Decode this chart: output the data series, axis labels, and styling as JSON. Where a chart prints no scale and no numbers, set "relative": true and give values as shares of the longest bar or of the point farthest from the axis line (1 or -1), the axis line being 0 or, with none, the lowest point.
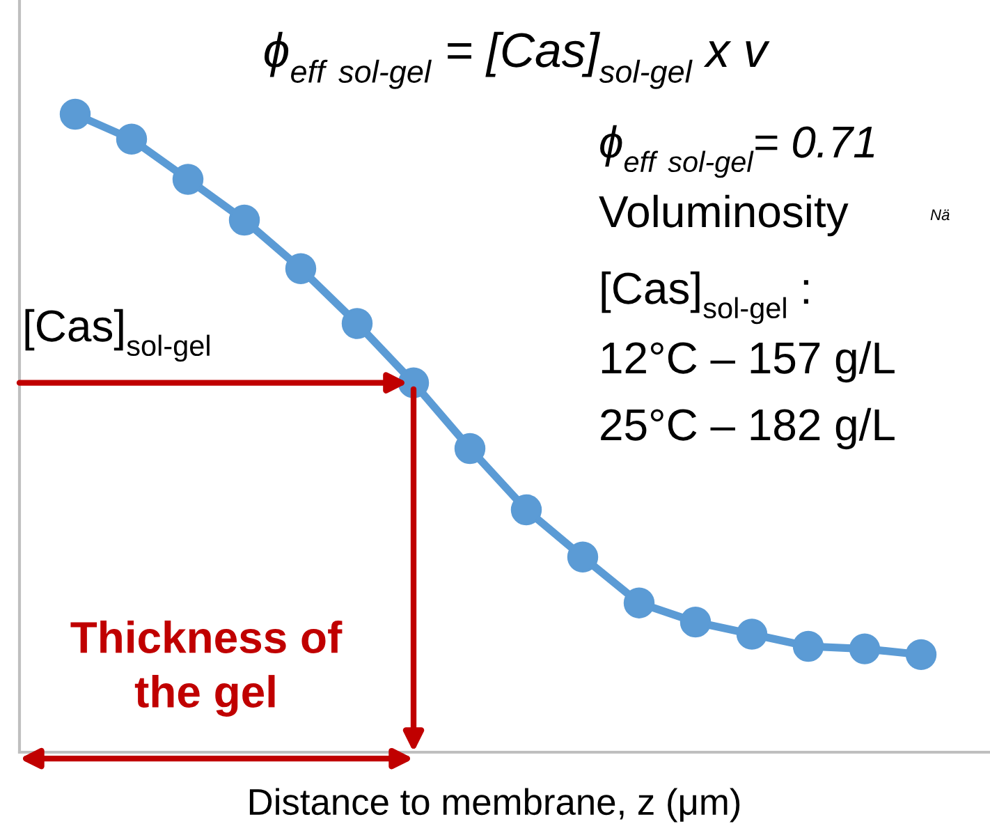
{
  "chart_data": {
    "type": "line",
    "relative": true,
    "marker": "circle",
    "line_style": "solid",
    "grid": false,
    "title": "ϕ$_{eff}$ $_{sol-gel}$ = [Cas]$_{sol-gel}$ x v",
    "xlabel": "Distance to membrane, z (μm)",
    "categories": [
      null,
      null,
      null,
      null,
      null,
      null,
      null,
      null,
      null,
      null,
      null,
      null,
      null,
      null,
      null,
      null
    ],
    "series": [
      {
        "color": "#5b9bd5",
        "values": [
          1,
          0.961,
          0.898,
          0.834,
          0.758,
          0.672,
          0.579,
          0.476,
          0.38,
          0.306,
          0.234,
          0.204,
          0.185,
          0.166,
          0.162,
          0.153
        ]
      }
    ],
    "annotations": [
      "ϕ$_{eff}$ $_{sol-gel}$= 0.71",
      "Voluminosity",
      "Nä",
      "[Cas]$_{sol-gel}$ :",
      "12°C – 157 g/L",
      "25°C – 182 g/L",
      "[Cas]$_{sol-gel}$",
      "Thickness of the gel"
    ]
  }
}
